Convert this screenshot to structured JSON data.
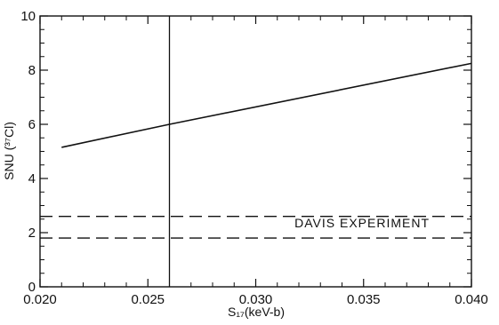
{
  "chart_data": {
    "type": "line",
    "xlabel": "S₁₇(keV-b)",
    "ylabel": "SNU (³⁷Cl)",
    "xlim": [
      0.02,
      0.04
    ],
    "ylim": [
      0,
      10
    ],
    "x_ticks": [
      "0.020",
      "0.025",
      "0.030",
      "0.035",
      "0.040"
    ],
    "y_ticks": [
      "0",
      "2",
      "4",
      "6",
      "8",
      "10"
    ],
    "grid": false,
    "series": [
      {
        "style": "solid",
        "x": [
          0.021,
          0.026,
          0.04
        ],
        "y": [
          5.15,
          6.0,
          8.25
        ]
      }
    ],
    "reference_lines": [
      {
        "orientation": "vertical",
        "x": 0.026,
        "style": "solid"
      },
      {
        "orientation": "horizontal",
        "y": 2.6,
        "style": "dashed"
      },
      {
        "orientation": "horizontal",
        "y": 1.8,
        "style": "dashed"
      }
    ],
    "annotations": [
      {
        "text": "DAVIS EXPERIMENT",
        "x": 0.0318,
        "y": 2.2
      }
    ]
  }
}
